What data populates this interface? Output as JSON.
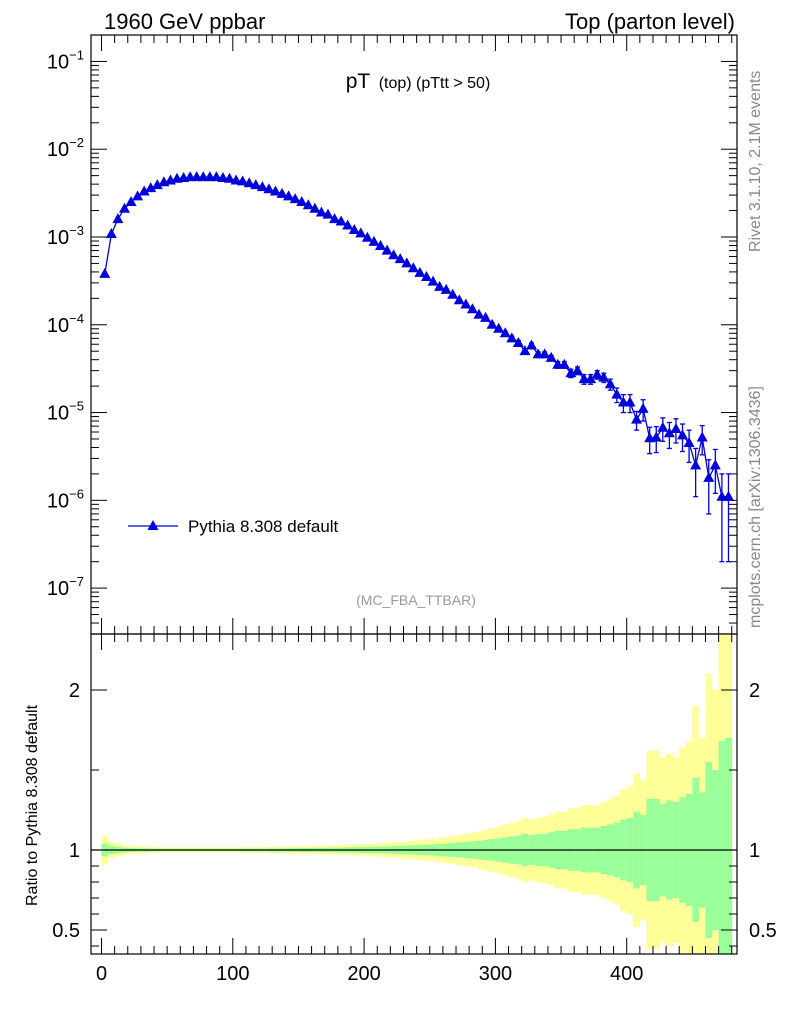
{
  "header": {
    "left": "1960 GeV ppbar",
    "right": "Top (parton level)"
  },
  "side_labels": {
    "rivet": "Rivet 3.1.10,  2.1M events",
    "mcplots": "mcplots.cern.ch [arXiv:1306.3436]"
  },
  "chart_data": [
    {
      "type": "scatter",
      "title_main": "pT",
      "title_sub": "(top) (pTtt > 50)",
      "watermark": "(MC_FBA_TTBAR)",
      "yscale": "log",
      "ylim": [
        3e-08,
        0.2
      ],
      "xlim": [
        -8,
        484
      ],
      "ytick_labels": [
        {
          "value": 0.1,
          "exp": "−1"
        },
        {
          "value": 0.01,
          "exp": "−2"
        },
        {
          "value": 0.001,
          "exp": "−3"
        },
        {
          "value": 0.0001,
          "exp": "−4"
        },
        {
          "value": 1e-05,
          "exp": "−5"
        },
        {
          "value": 1e-06,
          "exp": "−6"
        },
        {
          "value": 1e-07,
          "exp": "−7"
        }
      ],
      "legend": {
        "label": "Pythia 8.308 default",
        "placement": "left",
        "color": "#0000dd"
      },
      "series": [
        {
          "name": "Pythia 8.308 default",
          "color": "#0000dd",
          "x": [
            2.5,
            7.5,
            12.5,
            17.5,
            22.5,
            27.5,
            32.5,
            37.5,
            42.5,
            47.5,
            52.5,
            57.5,
            62.5,
            67.5,
            72.5,
            77.5,
            82.5,
            87.5,
            92.5,
            97.5,
            102.5,
            107.5,
            112.5,
            117.5,
            122.5,
            127.5,
            132.5,
            137.5,
            142.5,
            147.5,
            152.5,
            157.5,
            162.5,
            167.5,
            172.5,
            177.5,
            182.5,
            187.5,
            192.5,
            197.5,
            202.5,
            207.5,
            212.5,
            217.5,
            222.5,
            227.5,
            232.5,
            237.5,
            242.5,
            247.5,
            252.5,
            257.5,
            262.5,
            267.5,
            272.5,
            277.5,
            282.5,
            287.5,
            292.5,
            297.5,
            302.5,
            307.5,
            312.5,
            317.5,
            322.5,
            327.5,
            332.5,
            337.5,
            342.5,
            347.5,
            352.5,
            357.5,
            362.5,
            367.5,
            372.5,
            377.5,
            382.5,
            387.5,
            392.5,
            397.5,
            402.5,
            407.5,
            412.5,
            417.5,
            422.5,
            427.5,
            432.5,
            437.5,
            442.5,
            447.5,
            452.5,
            457.5,
            462.5,
            467.5,
            472.5,
            477.5
          ],
          "y": [
            0.00038,
            0.00108,
            0.0016,
            0.0021,
            0.0025,
            0.0029,
            0.0033,
            0.0036,
            0.0039,
            0.0042,
            0.0044,
            0.0046,
            0.0047,
            0.0048,
            0.0048,
            0.0048,
            0.0048,
            0.0048,
            0.0047,
            0.0046,
            0.0044,
            0.0043,
            0.0041,
            0.0039,
            0.0037,
            0.0035,
            0.0033,
            0.0031,
            0.0029,
            0.0027,
            0.0025,
            0.0023,
            0.0021,
            0.0019,
            0.0018,
            0.0016,
            0.0015,
            0.00135,
            0.0012,
            0.0011,
            0.00098,
            0.00088,
            0.00079,
            0.0007,
            0.00062,
            0.00056,
            0.0005,
            0.00044,
            0.00039,
            0.00035,
            0.00031,
            0.00027,
            0.00025,
            0.00022,
            0.00019,
            0.00017,
            0.00015,
            0.00013,
            0.00012,
            0.0001,
            9e-05,
            8e-05,
            7e-05,
            6.2e-05,
            5e-05,
            5.8e-05,
            4.6e-05,
            4.6e-05,
            4.2e-05,
            3.5e-05,
            3.5e-05,
            2.8e-05,
            3e-05,
            2.4e-05,
            2.4e-05,
            2.7e-05,
            2.5e-05,
            2.1e-05,
            1.6e-05,
            1.3e-05,
            1.3e-05,
            8.3e-06,
            1.1e-05,
            5.1e-06,
            5.2e-06,
            6.7e-06,
            5.8e-06,
            6.5e-06,
            5.5e-06,
            4.5e-06,
            2.5e-06,
            5.2e-06,
            1.8e-06,
            2.5e-06,
            1.1e-06,
            1.1e-06
          ],
          "yerr": [
            1e-05,
            2e-05,
            2e-05,
            3e-05,
            3e-05,
            3e-05,
            3e-05,
            4e-05,
            4e-05,
            4e-05,
            4e-05,
            4e-05,
            4e-05,
            4e-05,
            4e-05,
            4e-05,
            4e-05,
            4e-05,
            4e-05,
            4e-05,
            4e-05,
            4e-05,
            4e-05,
            4e-05,
            4e-05,
            3e-05,
            3e-05,
            3e-05,
            3e-05,
            3e-05,
            3e-05,
            3e-05,
            3e-05,
            2e-05,
            2e-05,
            2e-05,
            2e-05,
            2e-05,
            2e-05,
            2e-05,
            2e-05,
            1e-05,
            1e-05,
            1e-05,
            1e-05,
            1e-05,
            1e-05,
            1e-05,
            1e-05,
            1e-05,
            9e-06,
            8e-06,
            8e-06,
            7e-06,
            7e-06,
            6e-06,
            6e-06,
            5e-06,
            5e-06,
            5e-06,
            4e-06,
            4e-06,
            4e-06,
            4e-06,
            3e-06,
            4e-06,
            3e-06,
            3e-06,
            3e-06,
            3e-06,
            3e-06,
            3e-06,
            3e-06,
            3e-06,
            3e-06,
            3e-06,
            3e-06,
            3e-06,
            3e-06,
            3e-06,
            3e-06,
            2e-06,
            3e-06,
            1.7e-06,
            1.7e-06,
            2e-06,
            1.9e-06,
            2e-06,
            1.9e-06,
            1.8e-06,
            1.4e-06,
            1.9e-06,
            1.1e-06,
            1.3e-06,
            9e-07,
            9e-07
          ]
        }
      ]
    },
    {
      "type": "area",
      "ylabel": "Ratio to Pythia 8.308 default",
      "ylim": [
        0.35,
        2.35
      ],
      "xlim": [
        -8,
        484
      ],
      "reference_line": 1,
      "yticks": [
        0.5,
        1,
        2
      ],
      "ytick_labels": [
        "0.5",
        "1",
        "2"
      ],
      "xticks": [
        0,
        100,
        200,
        300,
        400
      ],
      "xtick_labels": [
        "0",
        "100",
        "200",
        "300",
        "400"
      ],
      "band_colors": {
        "outer": "#ffff99",
        "inner": "#99ff99"
      },
      "bin_edges": [
        0,
        5,
        10,
        15,
        20,
        25,
        30,
        35,
        40,
        45,
        50,
        55,
        60,
        65,
        70,
        75,
        80,
        85,
        90,
        95,
        100,
        105,
        110,
        115,
        120,
        125,
        130,
        135,
        140,
        145,
        150,
        155,
        160,
        165,
        170,
        175,
        180,
        185,
        190,
        195,
        200,
        205,
        210,
        215,
        220,
        225,
        230,
        235,
        240,
        245,
        250,
        255,
        260,
        265,
        270,
        275,
        280,
        285,
        290,
        295,
        300,
        305,
        310,
        315,
        320,
        325,
        330,
        335,
        340,
        345,
        350,
        355,
        360,
        365,
        370,
        375,
        380,
        385,
        390,
        395,
        400,
        405,
        410,
        415,
        420,
        425,
        430,
        435,
        440,
        445,
        450,
        455,
        460,
        465,
        470,
        475,
        480
      ],
      "inner_band_half_width": [
        0.04,
        0.025,
        0.02,
        0.015,
        0.012,
        0.011,
        0.01,
        0.009,
        0.009,
        0.008,
        0.008,
        0.008,
        0.008,
        0.008,
        0.008,
        0.008,
        0.008,
        0.008,
        0.008,
        0.008,
        0.008,
        0.009,
        0.009,
        0.009,
        0.009,
        0.01,
        0.01,
        0.01,
        0.011,
        0.011,
        0.012,
        0.012,
        0.013,
        0.013,
        0.014,
        0.014,
        0.015,
        0.016,
        0.017,
        0.018,
        0.019,
        0.02,
        0.021,
        0.022,
        0.024,
        0.025,
        0.027,
        0.029,
        0.031,
        0.033,
        0.035,
        0.038,
        0.04,
        0.043,
        0.047,
        0.05,
        0.054,
        0.058,
        0.063,
        0.068,
        0.073,
        0.079,
        0.085,
        0.09,
        0.1,
        0.093,
        0.1,
        0.1,
        0.11,
        0.12,
        0.12,
        0.13,
        0.13,
        0.14,
        0.14,
        0.14,
        0.15,
        0.16,
        0.17,
        0.19,
        0.2,
        0.24,
        0.22,
        0.32,
        0.32,
        0.29,
        0.31,
        0.3,
        0.33,
        0.35,
        0.45,
        0.36,
        0.55,
        0.5,
        0.68,
        0.7
      ],
      "outer_band_half_width": [
        0.09,
        0.05,
        0.04,
        0.03,
        0.025,
        0.022,
        0.02,
        0.018,
        0.017,
        0.016,
        0.016,
        0.016,
        0.016,
        0.016,
        0.016,
        0.016,
        0.016,
        0.016,
        0.016,
        0.016,
        0.016,
        0.017,
        0.017,
        0.018,
        0.018,
        0.019,
        0.02,
        0.02,
        0.021,
        0.022,
        0.023,
        0.024,
        0.025,
        0.026,
        0.027,
        0.028,
        0.03,
        0.032,
        0.034,
        0.036,
        0.038,
        0.04,
        0.042,
        0.045,
        0.048,
        0.05,
        0.054,
        0.058,
        0.062,
        0.066,
        0.07,
        0.076,
        0.08,
        0.086,
        0.094,
        0.1,
        0.108,
        0.116,
        0.126,
        0.136,
        0.146,
        0.158,
        0.17,
        0.18,
        0.2,
        0.19,
        0.2,
        0.21,
        0.22,
        0.24,
        0.24,
        0.26,
        0.26,
        0.28,
        0.28,
        0.28,
        0.3,
        0.32,
        0.34,
        0.38,
        0.4,
        0.48,
        0.44,
        0.62,
        0.62,
        0.58,
        0.6,
        0.58,
        0.64,
        0.68,
        0.9,
        0.7,
        1.1,
        1.0,
        1.35,
        1.4
      ]
    }
  ]
}
